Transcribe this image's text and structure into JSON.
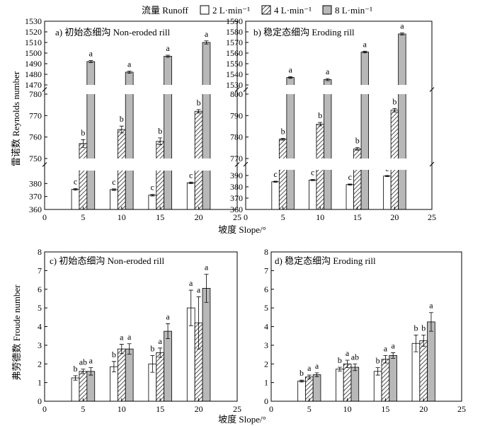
{
  "legend": {
    "title": "流量 Runoff",
    "items": [
      {
        "label": "2 L·min⁻¹",
        "pattern": "white"
      },
      {
        "label": "4 L·min⁻¹",
        "pattern": "hatch"
      },
      {
        "label": "8 L·min⁻¹",
        "pattern": "gray"
      }
    ]
  },
  "colors": {
    "gray_bar": "#b8b8b8",
    "hatch_stroke": "#555555",
    "axis": "#000000"
  },
  "shared_xlabel_top": "坡度 Slope/°",
  "shared_xlabel_bottom": "坡度 Slope/°",
  "ylabel_reynolds": "雷诺数 Reynolds number",
  "ylabel_froude": "弗劳德数 Froude number",
  "chart_data": [
    {
      "id": "a",
      "type": "bar",
      "title": "a) 初始态细沟 Non-eroded rill",
      "xlabel": "坡度 Slope/°",
      "ylabel": "雷诺数 Reynolds number",
      "categories": [
        5,
        10,
        15,
        20
      ],
      "x_ticks": [
        0,
        5,
        10,
        15,
        20,
        25
      ],
      "xlim": [
        0,
        25
      ],
      "broken_axis": true,
      "y_segments": [
        {
          "range": [
            360,
            390
          ],
          "ticks": [
            360,
            370,
            380
          ]
        },
        {
          "range": [
            750,
            780
          ],
          "ticks": [
            750,
            760,
            770,
            780
          ]
        },
        {
          "range": [
            1470,
            1530
          ],
          "ticks": [
            1470,
            1480,
            1490,
            1500,
            1510,
            1520,
            1530
          ]
        }
      ],
      "series": [
        {
          "name": "2 L·min⁻¹",
          "values": [
            375.5,
            375.3,
            371.0,
            380.5
          ],
          "errors": [
            0.6,
            0.6,
            0.6,
            0.6
          ],
          "letters": [
            "c",
            "c",
            "c",
            "c"
          ]
        },
        {
          "name": "4 L·min⁻¹",
          "values": [
            757,
            763.5,
            758,
            772
          ],
          "errors": [
            1.8,
            1.6,
            1.6,
            0.8
          ],
          "letters": [
            "b",
            "b",
            "b",
            "b"
          ]
        },
        {
          "name": "8 L·min⁻¹",
          "values": [
            1492,
            1482,
            1497,
            1510
          ],
          "errors": [
            1.0,
            1.0,
            1.0,
            1.5
          ],
          "letters": [
            "a",
            "a",
            "a",
            "a"
          ]
        }
      ]
    },
    {
      "id": "b",
      "type": "bar",
      "title": "b) 稳定态细沟 Eroding rill",
      "xlabel": "坡度 Slope/°",
      "ylabel": "",
      "categories": [
        5,
        10,
        15,
        20
      ],
      "x_ticks": [
        0,
        5,
        10,
        15,
        20,
        25
      ],
      "xlim": [
        0,
        25
      ],
      "broken_axis": true,
      "y_segments": [
        {
          "range": [
            360,
            395
          ],
          "ticks": [
            360,
            370,
            380,
            390
          ]
        },
        {
          "range": [
            770,
            800
          ],
          "ticks": [
            770,
            780,
            790,
            800
          ]
        },
        {
          "range": [
            1530,
            1590
          ],
          "ticks": [
            1530,
            1540,
            1550,
            1560,
            1570,
            1580,
            1590
          ]
        }
      ],
      "series": [
        {
          "name": "2 L·min⁻¹",
          "values": [
            384.5,
            386.0,
            382.0,
            389.5
          ],
          "errors": [
            0.5,
            0.5,
            0.5,
            0.5
          ],
          "letters": [
            "c",
            "c",
            "c",
            "c"
          ]
        },
        {
          "name": "4 L·min⁻¹",
          "values": [
            779,
            786,
            774.5,
            792.5
          ],
          "errors": [
            0.4,
            0.8,
            0.6,
            0.8
          ],
          "letters": [
            "b",
            "b",
            "b",
            "b"
          ]
        },
        {
          "name": "8 L·min⁻¹",
          "values": [
            1537,
            1535,
            1561,
            1578
          ],
          "errors": [
            0.8,
            1.0,
            0.8,
            1.0
          ],
          "letters": [
            "a",
            "a",
            "a",
            "a"
          ]
        }
      ]
    },
    {
      "id": "c",
      "type": "bar",
      "title": "c) 初始态细沟 Non-eroded rill",
      "xlabel": "坡度 Slope/°",
      "ylabel": "弗劳德数 Froude number",
      "categories": [
        5,
        10,
        15,
        20
      ],
      "x_ticks": [
        0,
        5,
        10,
        15,
        20,
        25
      ],
      "xlim": [
        0,
        25
      ],
      "ylim": [
        0,
        8
      ],
      "y_ticks": [
        0,
        1,
        2,
        3,
        4,
        5,
        6,
        7,
        8
      ],
      "series": [
        {
          "name": "2 L·min⁻¹",
          "values": [
            1.25,
            1.85,
            2.0,
            5.0
          ],
          "errors": [
            0.12,
            0.28,
            0.45,
            0.95
          ],
          "letters": [
            "b",
            "b",
            "b",
            "a"
          ]
        },
        {
          "name": "4 L·min⁻¹",
          "values": [
            1.6,
            2.8,
            2.6,
            4.2
          ],
          "errors": [
            0.12,
            0.25,
            0.25,
            1.4
          ],
          "letters": [
            "ab",
            "a",
            "a",
            "a"
          ]
        },
        {
          "name": "8 L·min⁻¹",
          "values": [
            1.6,
            2.8,
            3.75,
            6.05
          ],
          "errors": [
            0.2,
            0.28,
            0.4,
            0.75
          ],
          "letters": [
            "a",
            "a",
            "a",
            "a"
          ]
        }
      ]
    },
    {
      "id": "d",
      "type": "bar",
      "title": "d) 稳定态细沟 Eroding rill",
      "xlabel": "坡度 Slope/°",
      "ylabel": "",
      "categories": [
        5,
        10,
        15,
        20
      ],
      "x_ticks": [
        0,
        5,
        10,
        15,
        20,
        25
      ],
      "xlim": [
        0,
        25
      ],
      "ylim": [
        0,
        8
      ],
      "y_ticks": [
        0,
        1,
        2,
        3,
        4,
        5,
        6,
        7,
        8
      ],
      "series": [
        {
          "name": "2 L·min⁻¹",
          "values": [
            1.08,
            1.72,
            1.6,
            3.1
          ],
          "errors": [
            0.05,
            0.1,
            0.2,
            0.45
          ],
          "letters": [
            "b",
            "b",
            "b",
            "b"
          ]
        },
        {
          "name": "4 L·min⁻¹",
          "values": [
            1.3,
            2.0,
            2.25,
            3.25
          ],
          "errors": [
            0.1,
            0.2,
            0.2,
            0.3
          ],
          "letters": [
            "a",
            "a",
            "a",
            "b"
          ]
        },
        {
          "name": "8 L·min⁻¹",
          "values": [
            1.42,
            1.82,
            2.45,
            4.25
          ],
          "errors": [
            0.1,
            0.18,
            0.15,
            0.5
          ],
          "letters": [
            "a",
            "ab",
            "a",
            "a"
          ]
        }
      ]
    }
  ]
}
